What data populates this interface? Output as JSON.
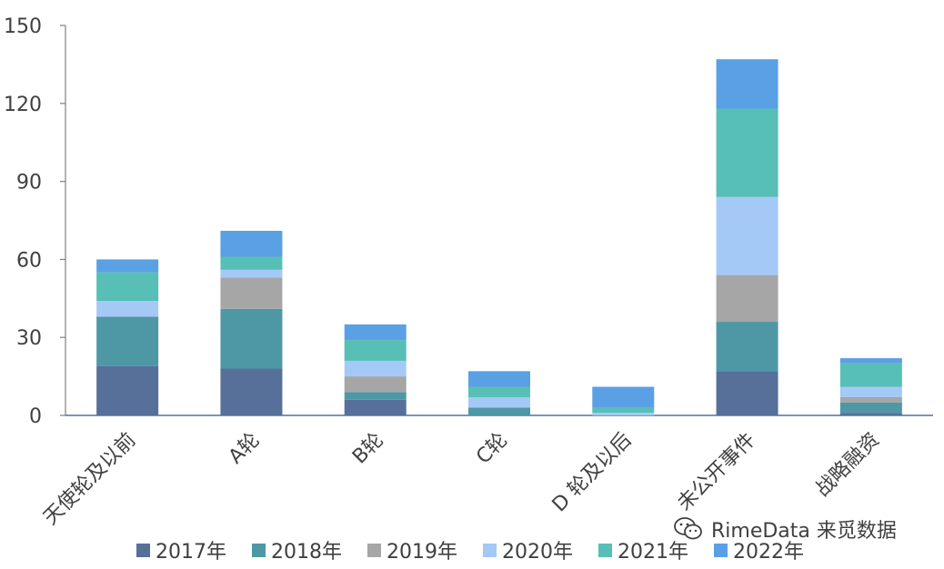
{
  "chart_data": {
    "type": "bar",
    "stacked": true,
    "categories": [
      "天使轮及以前",
      "A轮",
      "B轮",
      "C轮",
      "D 轮及以后",
      "未公开事件",
      "战略融资"
    ],
    "series": [
      {
        "name": "2017年",
        "color": "#56709a",
        "values": [
          19,
          18,
          6,
          0,
          0,
          17,
          1
        ]
      },
      {
        "name": "2018年",
        "color": "#4e98a6",
        "values": [
          19,
          23,
          3,
          3,
          0,
          19,
          4
        ]
      },
      {
        "name": "2019年",
        "color": "#a6a6a6",
        "values": [
          0,
          12,
          6,
          0,
          0,
          18,
          2
        ]
      },
      {
        "name": "2020年",
        "color": "#a5c9f7",
        "values": [
          6,
          3,
          6,
          4,
          1,
          30,
          4
        ]
      },
      {
        "name": "2021年",
        "color": "#57bfb5",
        "values": [
          11,
          5,
          8,
          4,
          2,
          34,
          9
        ]
      },
      {
        "name": "2022年",
        "color": "#5aa0e4",
        "values": [
          5,
          10,
          6,
          6,
          8,
          19,
          2
        ]
      }
    ],
    "ylim": [
      0,
      150
    ],
    "yticks": [
      "0",
      "30",
      "60",
      "90",
      "120",
      "150"
    ],
    "grid": false,
    "legend_position": "bottom"
  },
  "watermark": {
    "text": "RimeData 来觅数据",
    "icon": "wechat-icon"
  }
}
